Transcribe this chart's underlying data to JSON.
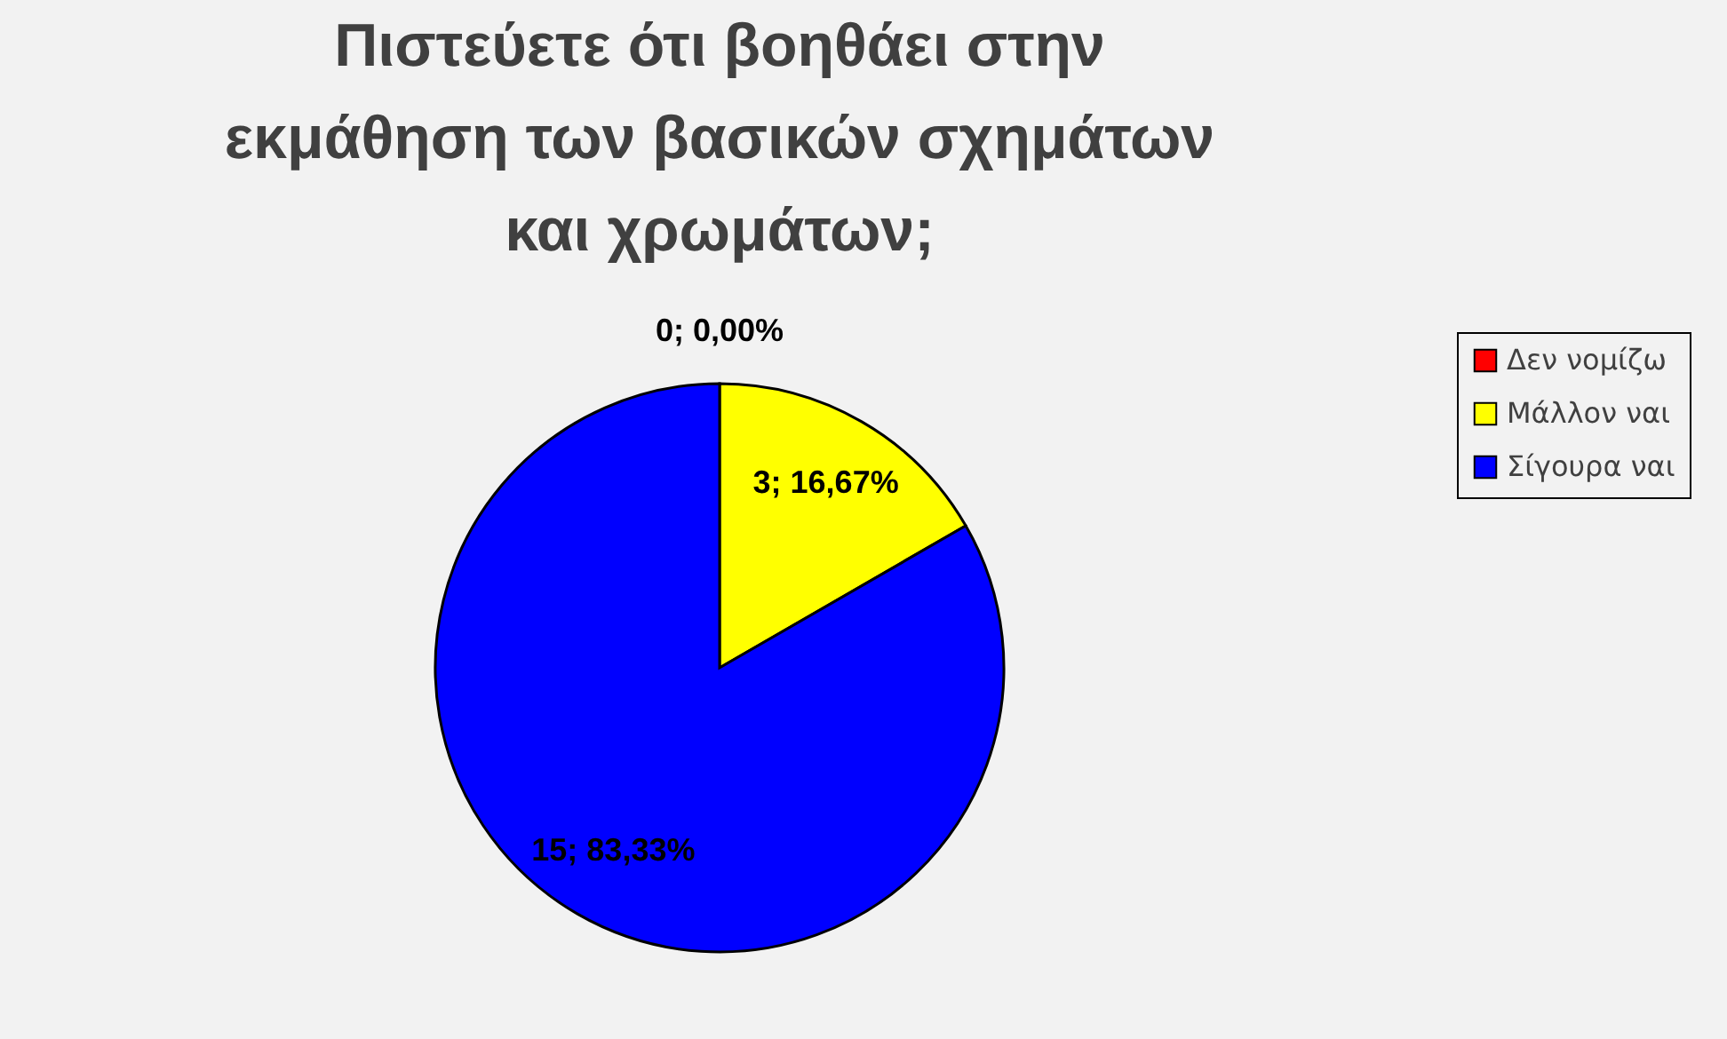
{
  "chart_data": {
    "type": "pie",
    "title": "Πιστεύετε ότι βοηθάει στην εκμάθηση των βασικών σχημάτων και χρωμάτων;",
    "categories": [
      "Δεν νομίζω",
      "Μάλλον ναι",
      "Σίγουρα ναι"
    ],
    "values": [
      0,
      3,
      15
    ],
    "colors": [
      "#ff0000",
      "#ffff00",
      "#0000ff"
    ],
    "value_labels": [
      "0; 0,00%",
      "3; 16,67%",
      "15; 83,33%"
    ],
    "legend": "right"
  }
}
